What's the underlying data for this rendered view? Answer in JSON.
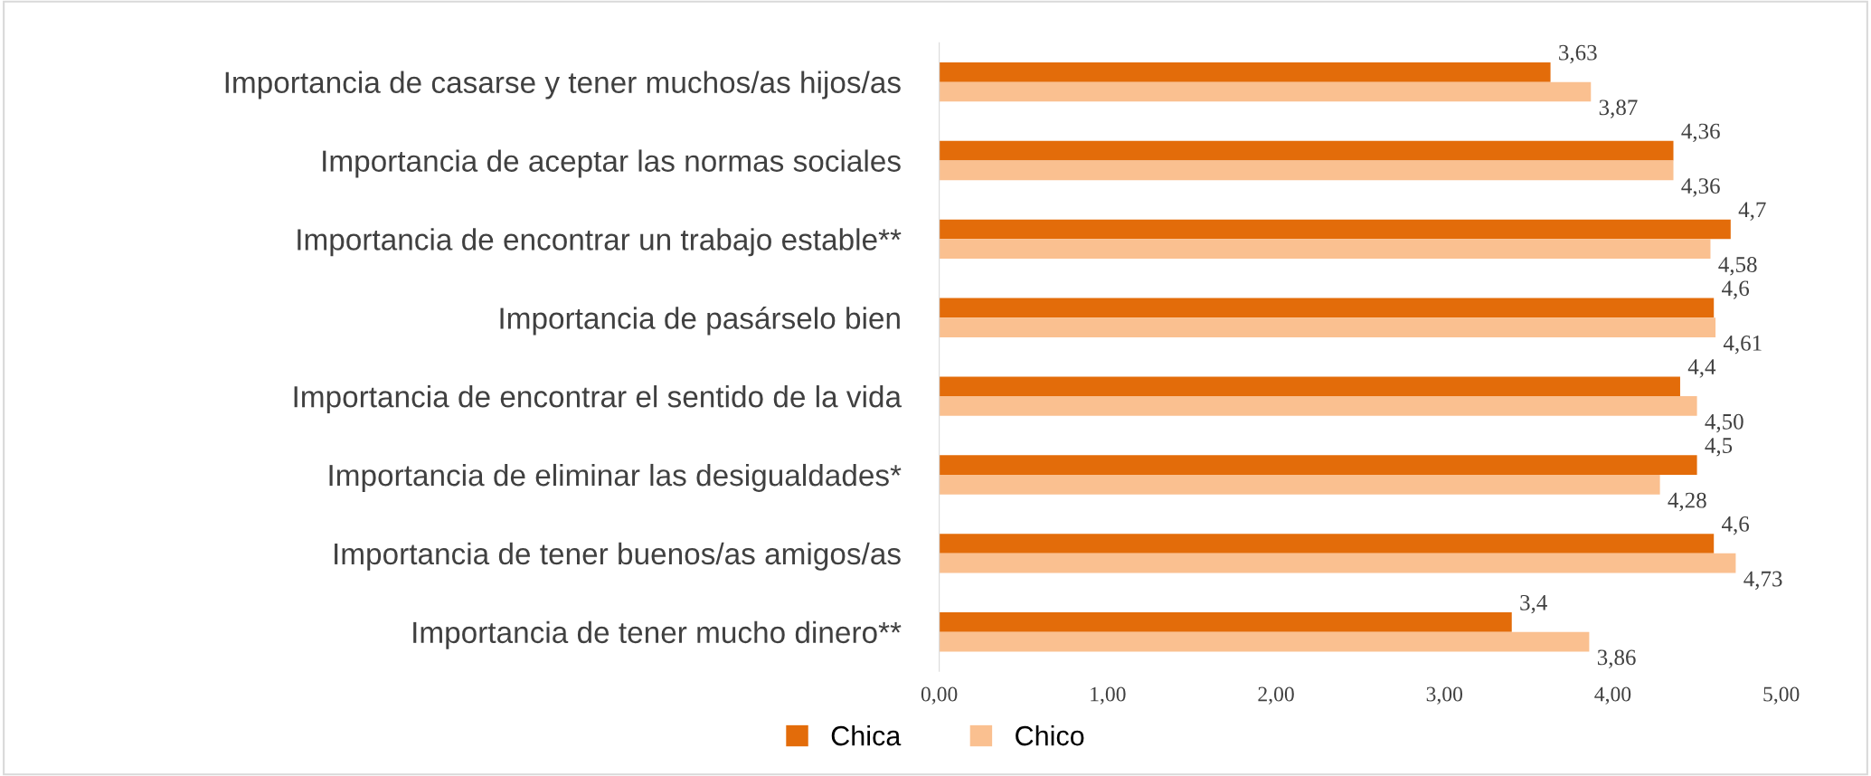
{
  "chart_data": {
    "type": "bar",
    "orientation": "horizontal",
    "categories": [
      "Importancia de casarse y tener muchos/as hijos/as",
      "Importancia de aceptar las normas sociales",
      "Importancia de encontrar un trabajo estable**",
      "Importancia de pasárselo bien",
      "Importancia de encontrar el sentido de la vida",
      "Importancia de eliminar las desigualdades*",
      "Importancia de tener buenos/as amigos/as",
      "Importancia de tener mucho dinero**"
    ],
    "series": [
      {
        "name": "Chica",
        "color": "#e36c0a",
        "values": [
          3.63,
          4.36,
          4.7,
          4.6,
          4.4,
          4.5,
          4.6,
          3.4
        ],
        "value_labels": [
          "3,63",
          "4,36",
          "4,7",
          "4,6",
          "4,4",
          "4,5",
          "4,6",
          "3,4"
        ]
      },
      {
        "name": "Chico",
        "color": "#fac090",
        "values": [
          3.87,
          4.36,
          4.58,
          4.61,
          4.5,
          4.28,
          4.73,
          3.86
        ],
        "value_labels": [
          "3,87",
          "4,36",
          "4,58",
          "4,61",
          "4,50",
          "4,28",
          "4,73",
          "3,86"
        ]
      }
    ],
    "xlim": [
      0,
      5
    ],
    "xticks": [
      {
        "value": 0,
        "label": "0,00"
      },
      {
        "value": 1,
        "label": "1,00"
      },
      {
        "value": 2,
        "label": "2,00"
      },
      {
        "value": 3,
        "label": "3,00"
      },
      {
        "value": 4,
        "label": "4,00"
      },
      {
        "value": 5,
        "label": "5,00"
      }
    ],
    "grid": false,
    "legend": "bottom"
  }
}
